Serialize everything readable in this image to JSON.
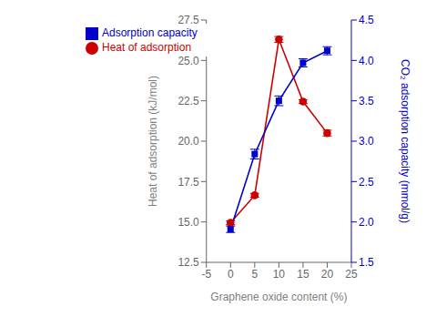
{
  "chart_data": {
    "type": "line",
    "xlabel": "Graphene oxide content (%)",
    "ylabel": "Heat of adsorption (kJ/mol)",
    "y2label": "CO₂ adsorption capacity (mmol/g)",
    "x": [
      0,
      5,
      10,
      15,
      20
    ],
    "series": [
      {
        "name": "Heat of adsorption",
        "color": "#cc0000",
        "marker": "circle",
        "line_style": "solid",
        "values": [
          14.95,
          16.65,
          26.3,
          22.45,
          20.5
        ],
        "errors": [
          0.12,
          0.12,
          0.18,
          0.12,
          0.18
        ]
      },
      {
        "name": "Adsorption capacity",
        "color": "#0000cc",
        "marker": "square",
        "line_style": "solid",
        "axis": "y2",
        "values": [
          1.91,
          2.84,
          3.5,
          3.97,
          4.12
        ],
        "errors": [
          0.04,
          0.06,
          0.06,
          0.05,
          0.05
        ]
      }
    ],
    "xlim": [
      -5,
      25
    ],
    "xticks": [
      -5,
      0,
      5,
      10,
      15,
      20,
      25
    ],
    "ylim": [
      12.5,
      27.5
    ],
    "yticks": [
      12.5,
      {
        "value": 15.0,
        "label": "15.0"
      },
      17.5,
      {
        "value": 20.0,
        "label": "20.0"
      },
      22.5,
      {
        "value": 25.0,
        "label": "25.0"
      },
      27.5
    ],
    "y2lim": [
      1.5,
      4.5
    ],
    "y2ticks": [
      1.5,
      {
        "value": 2.0,
        "label": "2.0"
      },
      2.5,
      {
        "value": 3.0,
        "label": "3.0"
      },
      3.5,
      {
        "value": 4.0,
        "label": "4.0"
      },
      4.5
    ],
    "grid": false,
    "legend": "upper left"
  }
}
